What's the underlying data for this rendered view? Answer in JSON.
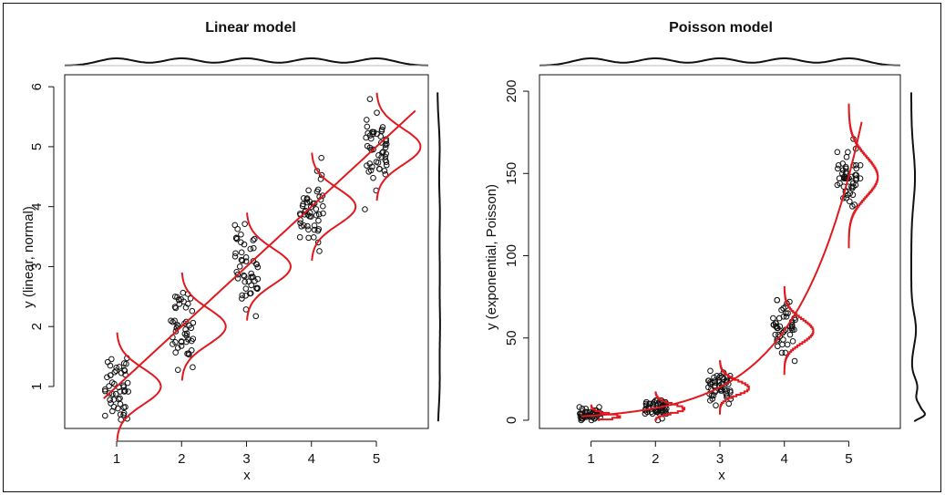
{
  "chart_data": [
    {
      "type": "scatter",
      "title": "Linear model",
      "xlabel": "x",
      "ylabel": "y (linear, normal)",
      "x_ticks": [
        "1",
        "2",
        "3",
        "4",
        "5"
      ],
      "y_ticks": [
        "1",
        "2",
        "3",
        "4",
        "5",
        "6"
      ],
      "xlim": [
        0.2,
        5.8
      ],
      "ylim": [
        0.3,
        6.2
      ],
      "fit_line": {
        "intercept": 0,
        "slope": 1,
        "x_range": [
          0.8,
          5.6
        ]
      },
      "conditional_densities": {
        "distribution": "normal",
        "sd": 0.3,
        "at_x": [
          1,
          2,
          3,
          4,
          5
        ]
      },
      "point_groups": [
        {
          "x": 1,
          "y_mean": 1.05,
          "y_sd": 0.33,
          "count": 50
        },
        {
          "x": 2,
          "y_mean": 2.0,
          "y_sd": 0.3,
          "count": 50
        },
        {
          "x": 3,
          "y_mean": 2.95,
          "y_sd": 0.35,
          "count": 50
        },
        {
          "x": 4,
          "y_mean": 3.95,
          "y_sd": 0.3,
          "count": 50
        },
        {
          "x": 5,
          "y_mean": 5.0,
          "y_sd": 0.3,
          "count": 50
        }
      ],
      "marginal_x_density": "shown above panel",
      "marginal_y_density": "shown right of panel"
    },
    {
      "type": "scatter",
      "title": "Poisson model",
      "xlabel": "x",
      "ylabel": "y (exponential, Poisson)",
      "x_ticks": [
        "1",
        "2",
        "3",
        "4",
        "5"
      ],
      "y_ticks": [
        "0",
        "50",
        "100",
        "150",
        "200"
      ],
      "xlim": [
        0.2,
        5.8
      ],
      "ylim": [
        -5,
        210
      ],
      "fit_curve": {
        "form": "exp",
        "a": 1,
        "b": 1,
        "x_range": [
          0.85,
          5.2
        ]
      },
      "conditional_densities": {
        "distribution": "poisson",
        "at_x": [
          1,
          2,
          3,
          4,
          5
        ]
      },
      "point_groups": [
        {
          "x": 1,
          "y_mean": 3,
          "y_sd": 1.7,
          "count": 50
        },
        {
          "x": 2,
          "y_mean": 7.5,
          "y_sd": 2.7,
          "count": 50
        },
        {
          "x": 3,
          "y_mean": 20,
          "y_sd": 4.5,
          "count": 50
        },
        {
          "x": 4,
          "y_mean": 55,
          "y_sd": 7.5,
          "count": 50
        },
        {
          "x": 5,
          "y_mean": 148,
          "y_sd": 12,
          "count": 50
        }
      ],
      "marginal_x_density": "shown above panel",
      "marginal_y_density": "shown right of panel"
    }
  ],
  "colors": {
    "points": "#111111",
    "fit": "#e0191e",
    "marginal": "#111111"
  }
}
